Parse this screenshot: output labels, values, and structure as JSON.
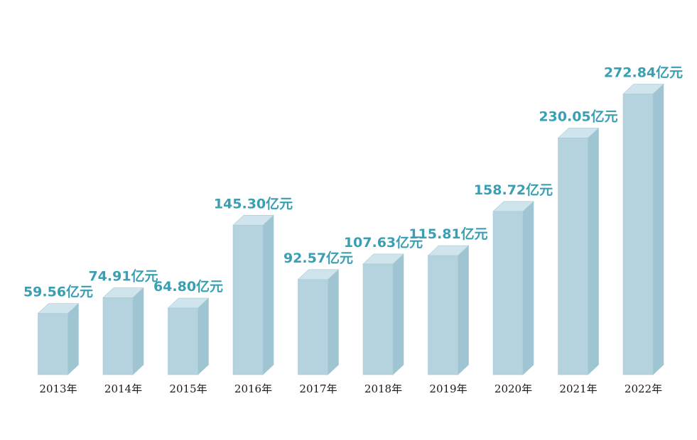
{
  "colors": {
    "bar_front": "#b5d3de",
    "bar_side": "#9fc4d2",
    "bar_top": "#cfe4ec",
    "bar_edge": "#a9cad6",
    "value_text": "#3a9fb3",
    "year_text": "#1a1a1a"
  },
  "chart_data": {
    "type": "bar",
    "categories": [
      "2013年",
      "2014年",
      "2015年",
      "2016年",
      "2017年",
      "2018年",
      "2019年",
      "2020年",
      "2021年",
      "2022年"
    ],
    "values": [
      59.56,
      74.91,
      64.8,
      145.3,
      92.57,
      107.63,
      115.81,
      158.72,
      230.05,
      272.84
    ],
    "value_labels": [
      "59.56亿元",
      "74.91亿元",
      "64.80亿元",
      "145.30亿元",
      "92.57亿元",
      "107.63亿元",
      "115.81亿元",
      "158.72亿元",
      "230.05亿元",
      "272.84亿元"
    ],
    "title": "",
    "xlabel": "",
    "ylabel": "",
    "grid": false,
    "style": "3d-columns"
  }
}
